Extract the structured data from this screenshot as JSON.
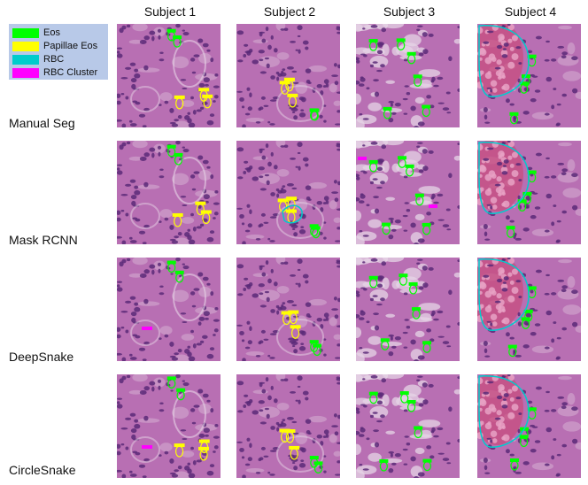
{
  "columns": [
    "Subject 1",
    "Subject 2",
    "Subject 3",
    "Subject 4"
  ],
  "rows": [
    "Manual Seg",
    "Mask RCNN",
    "DeepSnake",
    "CircleSnake"
  ],
  "legend": [
    {
      "label": "Eos",
      "color": "#00ff00"
    },
    {
      "label": "Papillae Eos",
      "color": "#ffff00"
    },
    {
      "label": "RBC",
      "color": "#00cccc"
    },
    {
      "label": "RBC Cluster",
      "color": "#ff00ff"
    }
  ],
  "tissue_colors": {
    "stroma": "#b86fb3",
    "nucleus": "#5a2a78",
    "light": "#e6d4e6",
    "rbc": "#c94a7a"
  }
}
